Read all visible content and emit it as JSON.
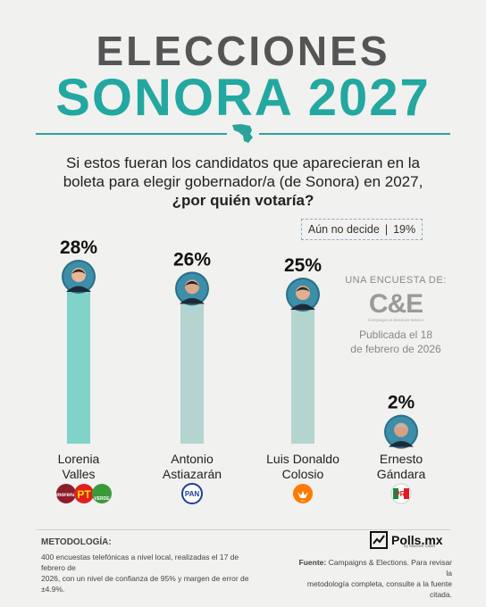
{
  "header": {
    "title_line1": "ELECCIONES",
    "title_line2": "SONORA 2027",
    "question_line1": "Si estos fueran los candidatos que aparecieran en la",
    "question_line2": "boleta para elegir gobernador/a (de Sonora) en 2027,",
    "question_bold": "¿por quién votaría?"
  },
  "undecided": {
    "label": "Aún no decide",
    "value": "19%"
  },
  "chart_data": {
    "type": "bar",
    "title": "",
    "xlabel": "",
    "ylabel": "",
    "ylim": [
      0,
      28
    ],
    "categories": [
      "Lorenia Valles",
      "Antonio Astiazarán",
      "Luis Donaldo Colosio",
      "Ernesto Gándara"
    ],
    "category_lines": [
      [
        "Lorenia",
        "Valles"
      ],
      [
        "Antonio",
        "Astiazarán"
      ],
      [
        "Luis Donaldo",
        "Colosio"
      ],
      [
        "Ernesto",
        "Gándara"
      ]
    ],
    "values": [
      28,
      26,
      25,
      2
    ],
    "value_labels": [
      "28%",
      "26%",
      "25%",
      "2%"
    ],
    "bar_colors": [
      "#7fd3c8",
      "#b4d4cf",
      "#b4d4cf",
      "#b4d4cf"
    ],
    "grid": false
  },
  "parties": {
    "lorenia": [
      "morena",
      "PT",
      "VERDE"
    ],
    "antonio": [
      "PAN"
    ],
    "luis": [
      "MC"
    ],
    "ernesto": [
      "PRI"
    ]
  },
  "source": {
    "label": "UNA ENCUESTA DE:",
    "logo": "C&E",
    "logo_sub": "Campaigns & Elections México",
    "date_line1": "Publicada el 18",
    "date_line2": "de febrero de 2026"
  },
  "methodology": {
    "title": "METODOLOGÍA:",
    "line1": "400 encuestas telefónicas a nivel local, realizadas el 17 de febrero de",
    "line2": "2026, con un nivel de confianza de 95% y margen de error de ±4.9%."
  },
  "footer": {
    "brand": "Polls.mx",
    "brand_sub": "by Massive Caller",
    "fuente_label": "Fuente:",
    "fuente_line1": " Campaigns & Elections. Para revisar la",
    "fuente_line2": "metodología completa, consulte a la fuente citada."
  },
  "colors": {
    "accent": "#22a8a0",
    "title_gray": "#555555",
    "highlight_bar": "#7fd3c8",
    "bar": "#b4d4cf"
  }
}
